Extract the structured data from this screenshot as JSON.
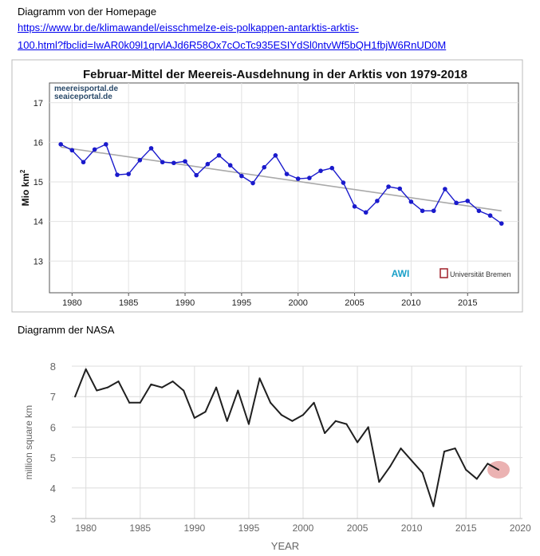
{
  "captions": {
    "homepage": "Diagramm von der Homepage",
    "nasa": "Diagramm der NASA"
  },
  "link": {
    "line1": "https://www.br.de/klimawandel/eisschmelze-eis-polkappen-antarktis-arktis-",
    "line2": "100.html?fbclid=IwAR0k09l1qrvlAJd6R58Ox7cOcTc935ESIYdSl0ntvWf5bQH1fbjW6RnUD0M"
  },
  "chart_data": [
    {
      "type": "line",
      "title": "Februar-Mittel der Meereis-Ausdehnung in der Arktis von 1979-2018",
      "ylabel": "Mio km",
      "ylabel_sup": "2",
      "xlabel": "",
      "logo_text": [
        "meereisportal.de",
        "seaiceportal.de"
      ],
      "credits": [
        "AWI",
        "Universität Bremen"
      ],
      "xlim": [
        1978,
        2019.5
      ],
      "ylim": [
        12.2,
        17.5
      ],
      "xticks": [
        1980,
        1985,
        1990,
        1995,
        2000,
        2005,
        2010,
        2015
      ],
      "yticks": [
        13,
        14,
        15,
        16,
        17
      ],
      "grid": true,
      "line_color": "#1a1acc",
      "trend_color": "#a9a9a9",
      "x": [
        1979,
        1980,
        1981,
        1982,
        1983,
        1984,
        1985,
        1986,
        1987,
        1988,
        1989,
        1990,
        1991,
        1992,
        1993,
        1994,
        1995,
        1996,
        1997,
        1998,
        1999,
        2000,
        2001,
        2002,
        2003,
        2004,
        2005,
        2006,
        2007,
        2008,
        2009,
        2010,
        2011,
        2012,
        2013,
        2014,
        2015,
        2016,
        2017,
        2018
      ],
      "series": [
        {
          "values": [
            15.95,
            15.8,
            15.5,
            15.82,
            15.95,
            15.18,
            15.2,
            15.55,
            15.85,
            15.5,
            15.48,
            15.52,
            15.17,
            15.45,
            15.67,
            15.42,
            15.15,
            14.97,
            15.37,
            15.67,
            15.2,
            15.08,
            15.1,
            15.28,
            15.35,
            14.98,
            14.38,
            14.23,
            14.52,
            14.88,
            14.83,
            14.5,
            14.27,
            14.27,
            14.82,
            14.47,
            14.52,
            14.27,
            14.15,
            13.95
          ]
        }
      ],
      "trend": {
        "start": [
          1979,
          15.88
        ],
        "end": [
          2018,
          14.27
        ]
      }
    },
    {
      "type": "line",
      "title": "",
      "ylabel": "million square km",
      "xlabel": "YEAR",
      "xlim": [
        1978.7,
        2020.2
      ],
      "ylim": [
        3,
        8
      ],
      "xticks": [
        1980,
        1985,
        1990,
        1995,
        2000,
        2005,
        2010,
        2015,
        2020
      ],
      "yticks": [
        3,
        4,
        5,
        6,
        7,
        8
      ],
      "grid": true,
      "line_color": "#1f1f1f",
      "highlight_color": "#e8a4a4",
      "x": [
        1979,
        1980,
        1981,
        1982,
        1983,
        1984,
        1985,
        1986,
        1987,
        1988,
        1989,
        1990,
        1991,
        1992,
        1993,
        1994,
        1995,
        1996,
        1997,
        1998,
        1999,
        2000,
        2001,
        2002,
        2003,
        2004,
        2005,
        2006,
        2007,
        2008,
        2009,
        2010,
        2011,
        2012,
        2013,
        2014,
        2015,
        2016,
        2017,
        2018
      ],
      "series": [
        {
          "values": [
            7.0,
            7.9,
            7.2,
            7.3,
            7.5,
            6.8,
            6.8,
            7.4,
            7.3,
            7.5,
            7.2,
            6.3,
            6.5,
            7.3,
            6.2,
            7.2,
            6.1,
            7.6,
            6.8,
            6.4,
            6.2,
            6.4,
            6.8,
            5.8,
            6.2,
            6.1,
            5.5,
            6.0,
            4.2,
            4.7,
            5.3,
            4.9,
            4.5,
            3.4,
            5.2,
            5.3,
            4.6,
            4.3,
            4.8,
            4.6
          ]
        }
      ],
      "highlight_point": [
        2018,
        4.6
      ]
    }
  ]
}
